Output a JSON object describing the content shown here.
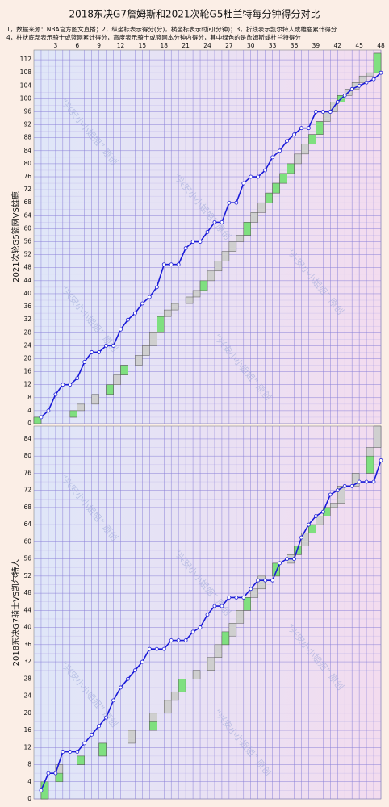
{
  "title": "2018东决G7詹姆斯和2021次轮G5杜兰特每分钟得分对比",
  "notes": [
    "1，数据来源：NBA官方图文直播；2，纵坐标表示得分(分)，横坐标表示时间(分钟)；3，折线表示凯尔特人或雄鹿累计得分",
    "4，柱状底部表示骑士或篮网累计得分，高度表示骑士或篮网本分钟内得分，其中绿色的是詹姆斯或杜兰特得分"
  ],
  "watermark": "“兴安小小姐姐” 原创",
  "chart_data": [
    {
      "type": "combo",
      "ylabel": "2021次轮G5篮网VS雄鹿",
      "x": [
        1,
        2,
        3,
        4,
        5,
        6,
        7,
        8,
        9,
        10,
        11,
        12,
        13,
        14,
        15,
        16,
        17,
        18,
        19,
        20,
        21,
        22,
        23,
        24,
        25,
        26,
        27,
        28,
        29,
        30,
        31,
        32,
        33,
        34,
        35,
        36,
        37,
        38,
        39,
        40,
        41,
        42,
        43,
        44,
        45,
        46,
        47,
        48
      ],
      "xlim": [
        0,
        48
      ],
      "xticks": [
        3,
        6,
        9,
        12,
        15,
        18,
        21,
        24,
        27,
        30,
        33,
        36,
        39,
        42,
        45,
        48
      ],
      "ylim": [
        0,
        115
      ],
      "yticks": [
        0,
        4,
        8,
        12,
        16,
        20,
        24,
        28,
        32,
        36,
        40,
        44,
        48,
        52,
        56,
        60,
        64,
        68,
        72,
        76,
        80,
        84,
        88,
        92,
        96,
        100,
        104,
        108,
        112
      ],
      "line": {
        "color": "#1a1ad8",
        "values": [
          2,
          4,
          9,
          12,
          12,
          14,
          19,
          22,
          22,
          24,
          24,
          29,
          32,
          34,
          37,
          39,
          42,
          49,
          49,
          49,
          54,
          56,
          56,
          59,
          62,
          62,
          68,
          68,
          74,
          76,
          76,
          78,
          82,
          84,
          87,
          89,
          91,
          91,
          96,
          96,
          96,
          99,
          101,
          103,
          104,
          105,
          106,
          108
        ]
      },
      "bars": {
        "color": "#cfcfcf",
        "values": [
          2,
          0,
          0,
          0,
          0,
          2,
          2,
          0,
          3,
          0,
          3,
          3,
          3,
          0,
          3,
          3,
          4,
          5,
          2,
          2,
          0,
          2,
          2,
          3,
          3,
          3,
          3,
          3,
          2,
          4,
          3,
          3,
          3,
          3,
          3,
          3,
          3,
          3,
          3,
          4,
          3,
          3,
          2,
          2,
          2,
          2,
          1,
          6
        ]
      },
      "highlight": {
        "color": "#7fe07f",
        "values": [
          2,
          0,
          0,
          0,
          0,
          2,
          0,
          0,
          0,
          0,
          3,
          0,
          3,
          0,
          0,
          0,
          0,
          5,
          0,
          0,
          0,
          0,
          0,
          3,
          0,
          0,
          0,
          0,
          0,
          4,
          0,
          0,
          3,
          3,
          3,
          3,
          0,
          0,
          3,
          4,
          0,
          0,
          2,
          0,
          0,
          0,
          0,
          6
        ]
      }
    },
    {
      "type": "combo",
      "ylabel": "2018东决G7骑士VS凯尔特人",
      "x": [
        1,
        2,
        3,
        4,
        5,
        6,
        7,
        8,
        9,
        10,
        11,
        12,
        13,
        14,
        15,
        16,
        17,
        18,
        19,
        20,
        21,
        22,
        23,
        24,
        25,
        26,
        27,
        28,
        29,
        30,
        31,
        32,
        33,
        34,
        35,
        36,
        37,
        38,
        39,
        40,
        41,
        42,
        43,
        44,
        45,
        46,
        47,
        48
      ],
      "xlim": [
        0,
        48
      ],
      "ylim": [
        0,
        87
      ],
      "yticks": [
        0,
        4,
        8,
        12,
        16,
        20,
        24,
        28,
        32,
        36,
        40,
        44,
        48,
        52,
        56,
        60,
        64,
        68,
        72,
        76,
        80,
        84
      ],
      "line": {
        "color": "#1a1ad8",
        "values": [
          2,
          6,
          6,
          11,
          11,
          11,
          13,
          15,
          17,
          19,
          23,
          26,
          28,
          30,
          32,
          35,
          35,
          35,
          37,
          37,
          37,
          39,
          40,
          43,
          45,
          45,
          47,
          47,
          47,
          49,
          51,
          51,
          51,
          55,
          56,
          56,
          61,
          64,
          66,
          67,
          71,
          72,
          73,
          73,
          74,
          74,
          74,
          79
        ]
      },
      "bars": {
        "color": "#cfcfcf",
        "values": [
          0,
          4,
          0,
          4,
          0,
          0,
          2,
          0,
          0,
          3,
          0,
          0,
          0,
          3,
          0,
          0,
          4,
          0,
          3,
          2,
          3,
          0,
          2,
          0,
          3,
          3,
          2,
          3,
          3,
          3,
          2,
          3,
          0,
          3,
          0,
          2,
          2,
          3,
          2,
          2,
          2,
          1,
          4,
          0,
          3,
          0,
          6,
          5
        ]
      },
      "highlight": {
        "color": "#7fe07f",
        "values": [
          0,
          4,
          0,
          2,
          0,
          0,
          2,
          0,
          0,
          3,
          0,
          0,
          0,
          0,
          0,
          0,
          2,
          0,
          0,
          0,
          3,
          0,
          0,
          0,
          0,
          0,
          3,
          0,
          0,
          3,
          0,
          0,
          0,
          3,
          0,
          0,
          2,
          0,
          2,
          0,
          2,
          0,
          0,
          0,
          0,
          0,
          4,
          0
        ]
      }
    }
  ]
}
